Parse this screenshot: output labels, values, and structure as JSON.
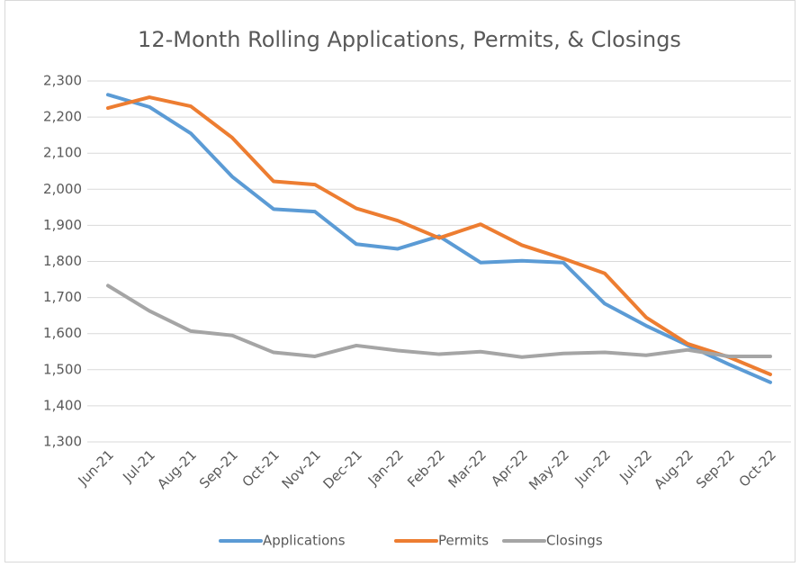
{
  "chart_data": {
    "type": "line",
    "title": "12-Month Rolling Applications, Permits, & Closings",
    "categories": [
      "Jun-21",
      "Jul-21",
      "Aug-21",
      "Sep-21",
      "Oct-21",
      "Nov-21",
      "Dec-21",
      "Jan-22",
      "Feb-22",
      "Mar-22",
      "Apr-22",
      "May-22",
      "Jun-22",
      "Jul-22",
      "Aug-22",
      "Sep-22",
      "Oct-22"
    ],
    "series": [
      {
        "name": "Applications",
        "color": "#5b9bd5",
        "values": [
          2262,
          2228,
          2155,
          2035,
          1945,
          1938,
          1848,
          1835,
          1870,
          1797,
          1802,
          1797,
          1683,
          1622,
          1568,
          1515,
          1465
        ]
      },
      {
        "name": "Permits",
        "color": "#ed7d31",
        "values": [
          2225,
          2255,
          2230,
          2143,
          2022,
          2013,
          1947,
          1913,
          1865,
          1903,
          1845,
          1808,
          1767,
          1645,
          1572,
          1535,
          1487
        ]
      },
      {
        "name": "Closings",
        "color": "#a5a5a5",
        "values": [
          1733,
          1663,
          1607,
          1595,
          1548,
          1537,
          1567,
          1553,
          1543,
          1550,
          1535,
          1545,
          1548,
          1540,
          1555,
          1537,
          1537
        ]
      }
    ],
    "ylim": [
      1300,
      2300
    ],
    "yticks": [
      {
        "value": 1300,
        "label": "1,300"
      },
      {
        "value": 1400,
        "label": "1,400"
      },
      {
        "value": 1500,
        "label": "1,500"
      },
      {
        "value": 1600,
        "label": "1,600"
      },
      {
        "value": 1700,
        "label": "1,700"
      },
      {
        "value": 1800,
        "label": "1,800"
      },
      {
        "value": 1900,
        "label": "1,900"
      },
      {
        "value": 2000,
        "label": "2,000"
      },
      {
        "value": 2100,
        "label": "2,100"
      },
      {
        "value": 2200,
        "label": "2,200"
      },
      {
        "value": 2300,
        "label": "2,300"
      }
    ],
    "grid": true,
    "legend": "bottom"
  }
}
